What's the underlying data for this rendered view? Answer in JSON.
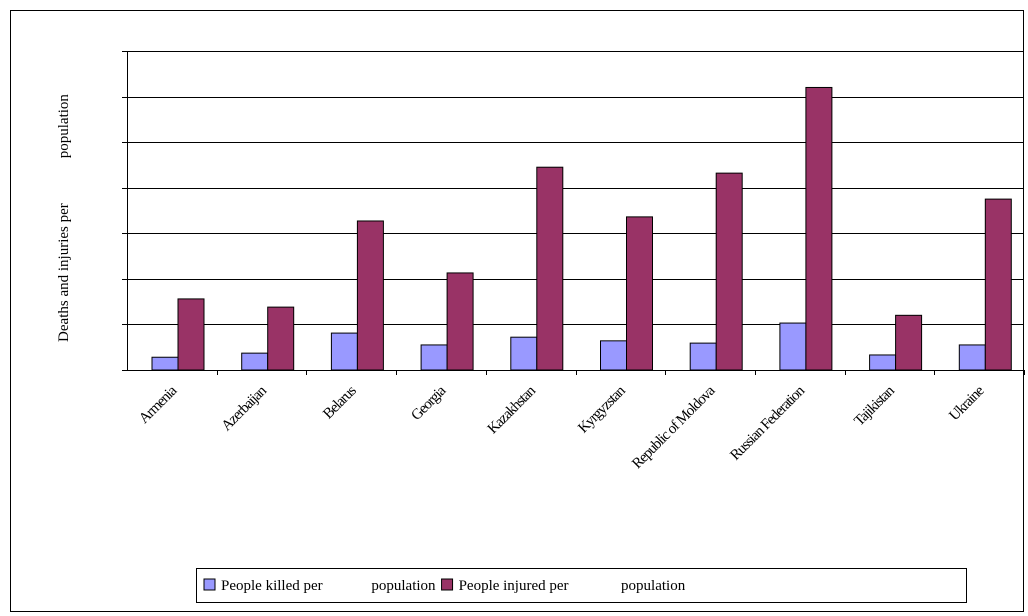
{
  "chart_data": {
    "type": "bar",
    "y_label": "Deaths and injuries per            population",
    "categories": [
      "Armenia",
      "Azerbaijan",
      "Belarus",
      "Georgia",
      "Kazakhstan",
      "Kyrgyzstan",
      "Republic of Moldova",
      "Russian Federation",
      "Tajikistan",
      "Ukraine"
    ],
    "series": [
      {
        "name": "People killed per             population",
        "color": "#9999ff",
        "values": [
          0.28,
          0.37,
          0.81,
          0.55,
          0.72,
          0.64,
          0.59,
          1.03,
          0.33,
          0.55
        ]
      },
      {
        "name": "People injured per              population",
        "color": "#993366",
        "values": [
          1.56,
          1.38,
          3.27,
          2.13,
          4.45,
          3.36,
          4.32,
          6.2,
          1.2,
          3.75
        ]
      }
    ],
    "ylim": [
      0,
      7
    ],
    "yticks": [
      0,
      1,
      2,
      3,
      4,
      5,
      6,
      7
    ],
    "grid": true,
    "legend": "bottom"
  }
}
